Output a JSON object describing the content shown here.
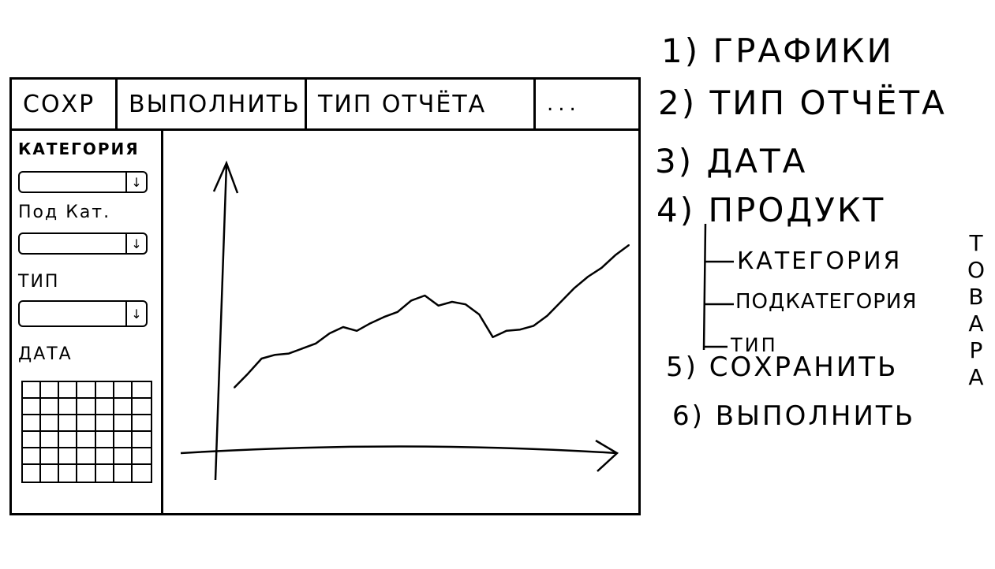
{
  "toolbar": {
    "save_label": "СОХР",
    "run_label": "ВЫПОЛНИТЬ",
    "report_type_label": "ТИП ОТЧЁТА",
    "more_label": "..."
  },
  "sidebar": {
    "category_label": "КАТЕГОРИЯ",
    "subcategory_label": "Под Кат.",
    "type_label": "ТИП",
    "date_label": "ДАТА",
    "calendar": {
      "rows": 6,
      "cols": 7
    }
  },
  "chart_data": {
    "type": "line",
    "title": "",
    "xlabel": "",
    "ylabel": "",
    "x": [
      0,
      1,
      2,
      3,
      4,
      5,
      6,
      7,
      8,
      9,
      10,
      11,
      12,
      13,
      14,
      15,
      16,
      17,
      18,
      19,
      20,
      21,
      22,
      23,
      24,
      25,
      26,
      27,
      28,
      29
    ],
    "values": [
      7,
      18,
      30,
      33,
      34,
      38,
      42,
      50,
      55,
      52,
      58,
      63,
      67,
      76,
      80,
      72,
      75,
      73,
      65,
      47,
      52,
      53,
      56,
      64,
      75,
      86,
      95,
      102,
      112,
      120
    ],
    "ylim": [
      0,
      200
    ],
    "grid": false,
    "legend": false
  },
  "notes": {
    "n1": "1) ГРАФИКИ",
    "n2": "2) ТИП ОТЧЁТА",
    "n3": "3) ДАТА",
    "n4": "4) ПРОДУКТ",
    "n4a": "КАТЕГОРИЯ",
    "n4b": "ПОДКАТЕГОРИЯ",
    "n4c": "ТИП",
    "n4_side": "ТОВАРА",
    "n5": "5) СОХРАНИТЬ",
    "n6": "6) ВЫПОЛНИТЬ"
  }
}
